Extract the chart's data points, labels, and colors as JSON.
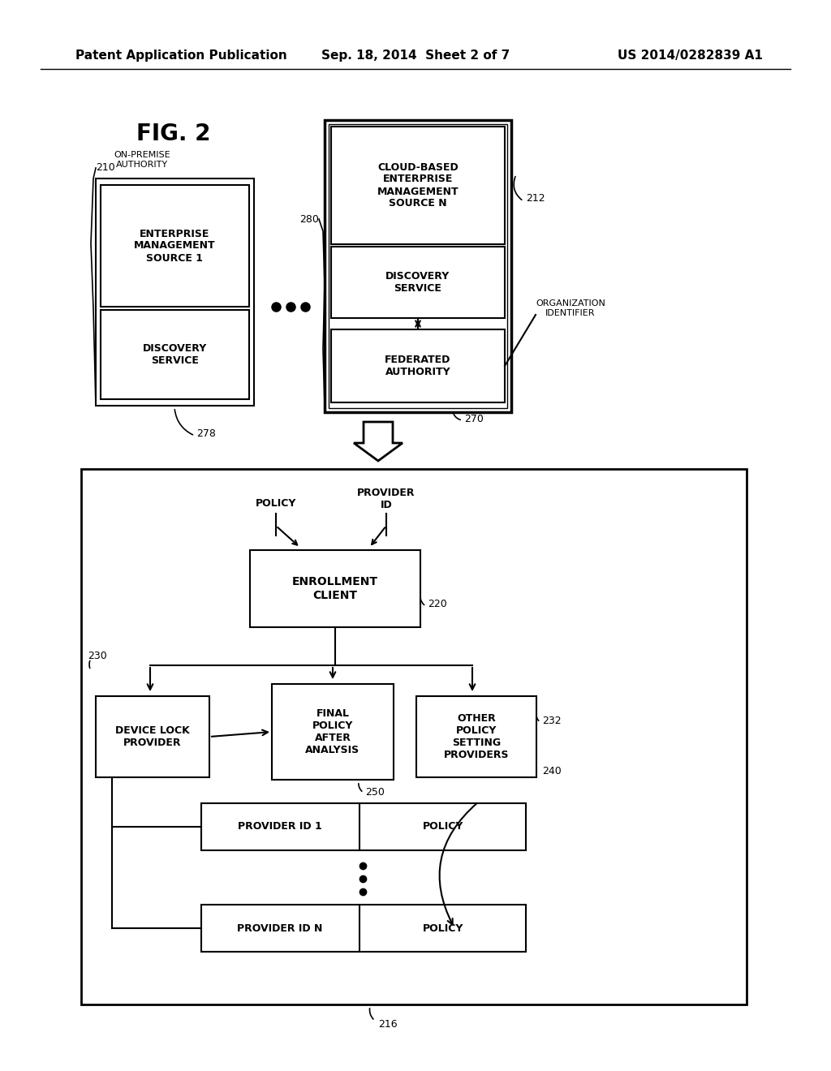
{
  "bg": "#ffffff",
  "header_left": "Patent Application Publication",
  "header_center": "Sep. 18, 2014  Sheet 2 of 7",
  "header_right": "US 2014/0282839 A1"
}
